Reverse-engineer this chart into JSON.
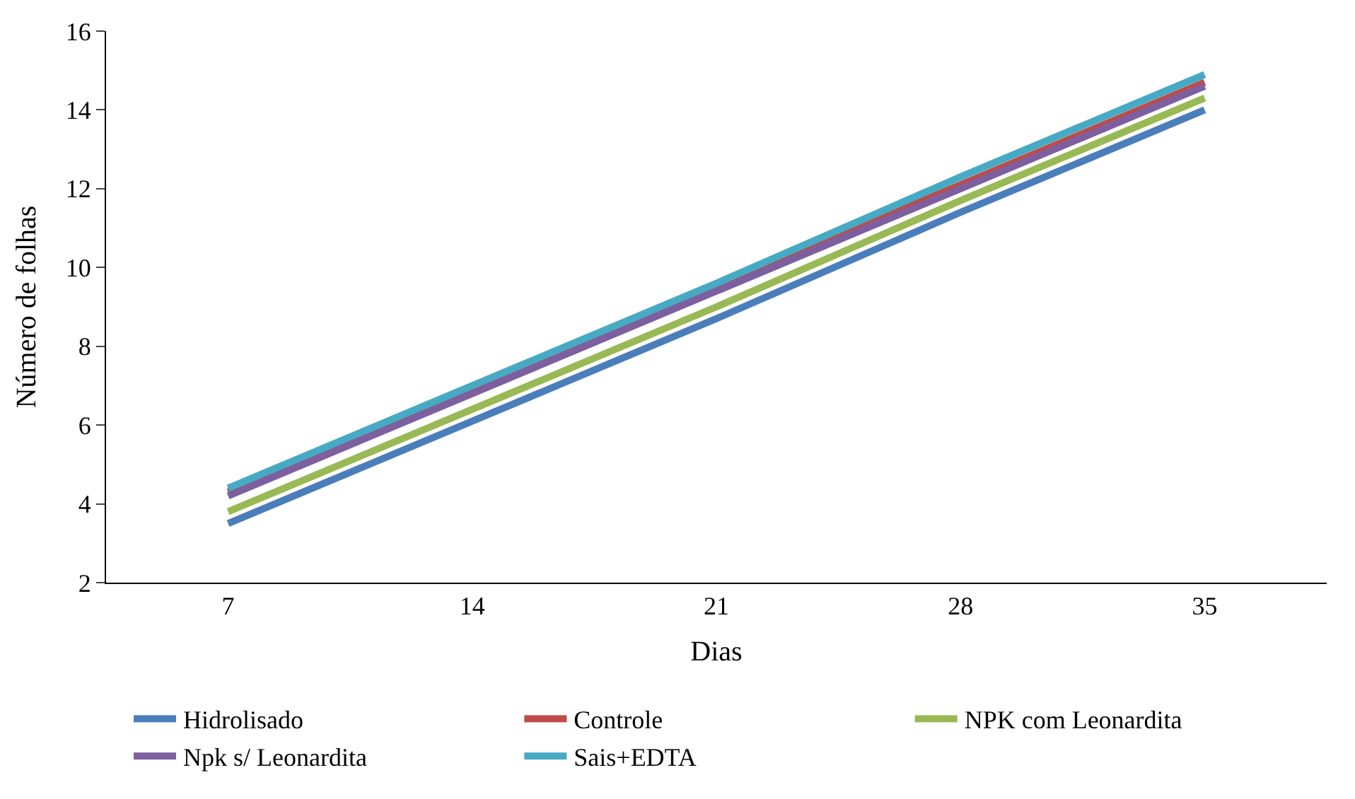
{
  "chart_data": {
    "type": "line",
    "xlabel": "Dias",
    "ylabel": "Número de folhas",
    "categories": [
      "7",
      "14",
      "21",
      "28",
      "35"
    ],
    "series": [
      {
        "name": "Hidrolisado",
        "color": "#4a7ebb",
        "values": [
          3.5,
          6.1,
          8.7,
          11.4,
          14.0
        ]
      },
      {
        "name": "Controle",
        "color": "#be4b48",
        "values": [
          4.3,
          6.9,
          9.5,
          12.1,
          14.7
        ]
      },
      {
        "name": "NPK com Leonardita",
        "color": "#98b954",
        "values": [
          3.8,
          6.4,
          9.0,
          11.7,
          14.3
        ]
      },
      {
        "name": "Npk s/ Leonardita",
        "color": "#7d5fa0",
        "values": [
          4.2,
          6.8,
          9.4,
          12.0,
          14.6
        ]
      },
      {
        "name": "Sais+EDTA",
        "color": "#46aac5",
        "values": [
          4.4,
          7.0,
          9.6,
          12.3,
          14.9
        ]
      }
    ],
    "ylim": [
      2,
      16
    ],
    "yticks": [
      2,
      4,
      6,
      8,
      10,
      12,
      14,
      16
    ],
    "legend": "bottom",
    "marker": "none",
    "line_style": "solid"
  }
}
